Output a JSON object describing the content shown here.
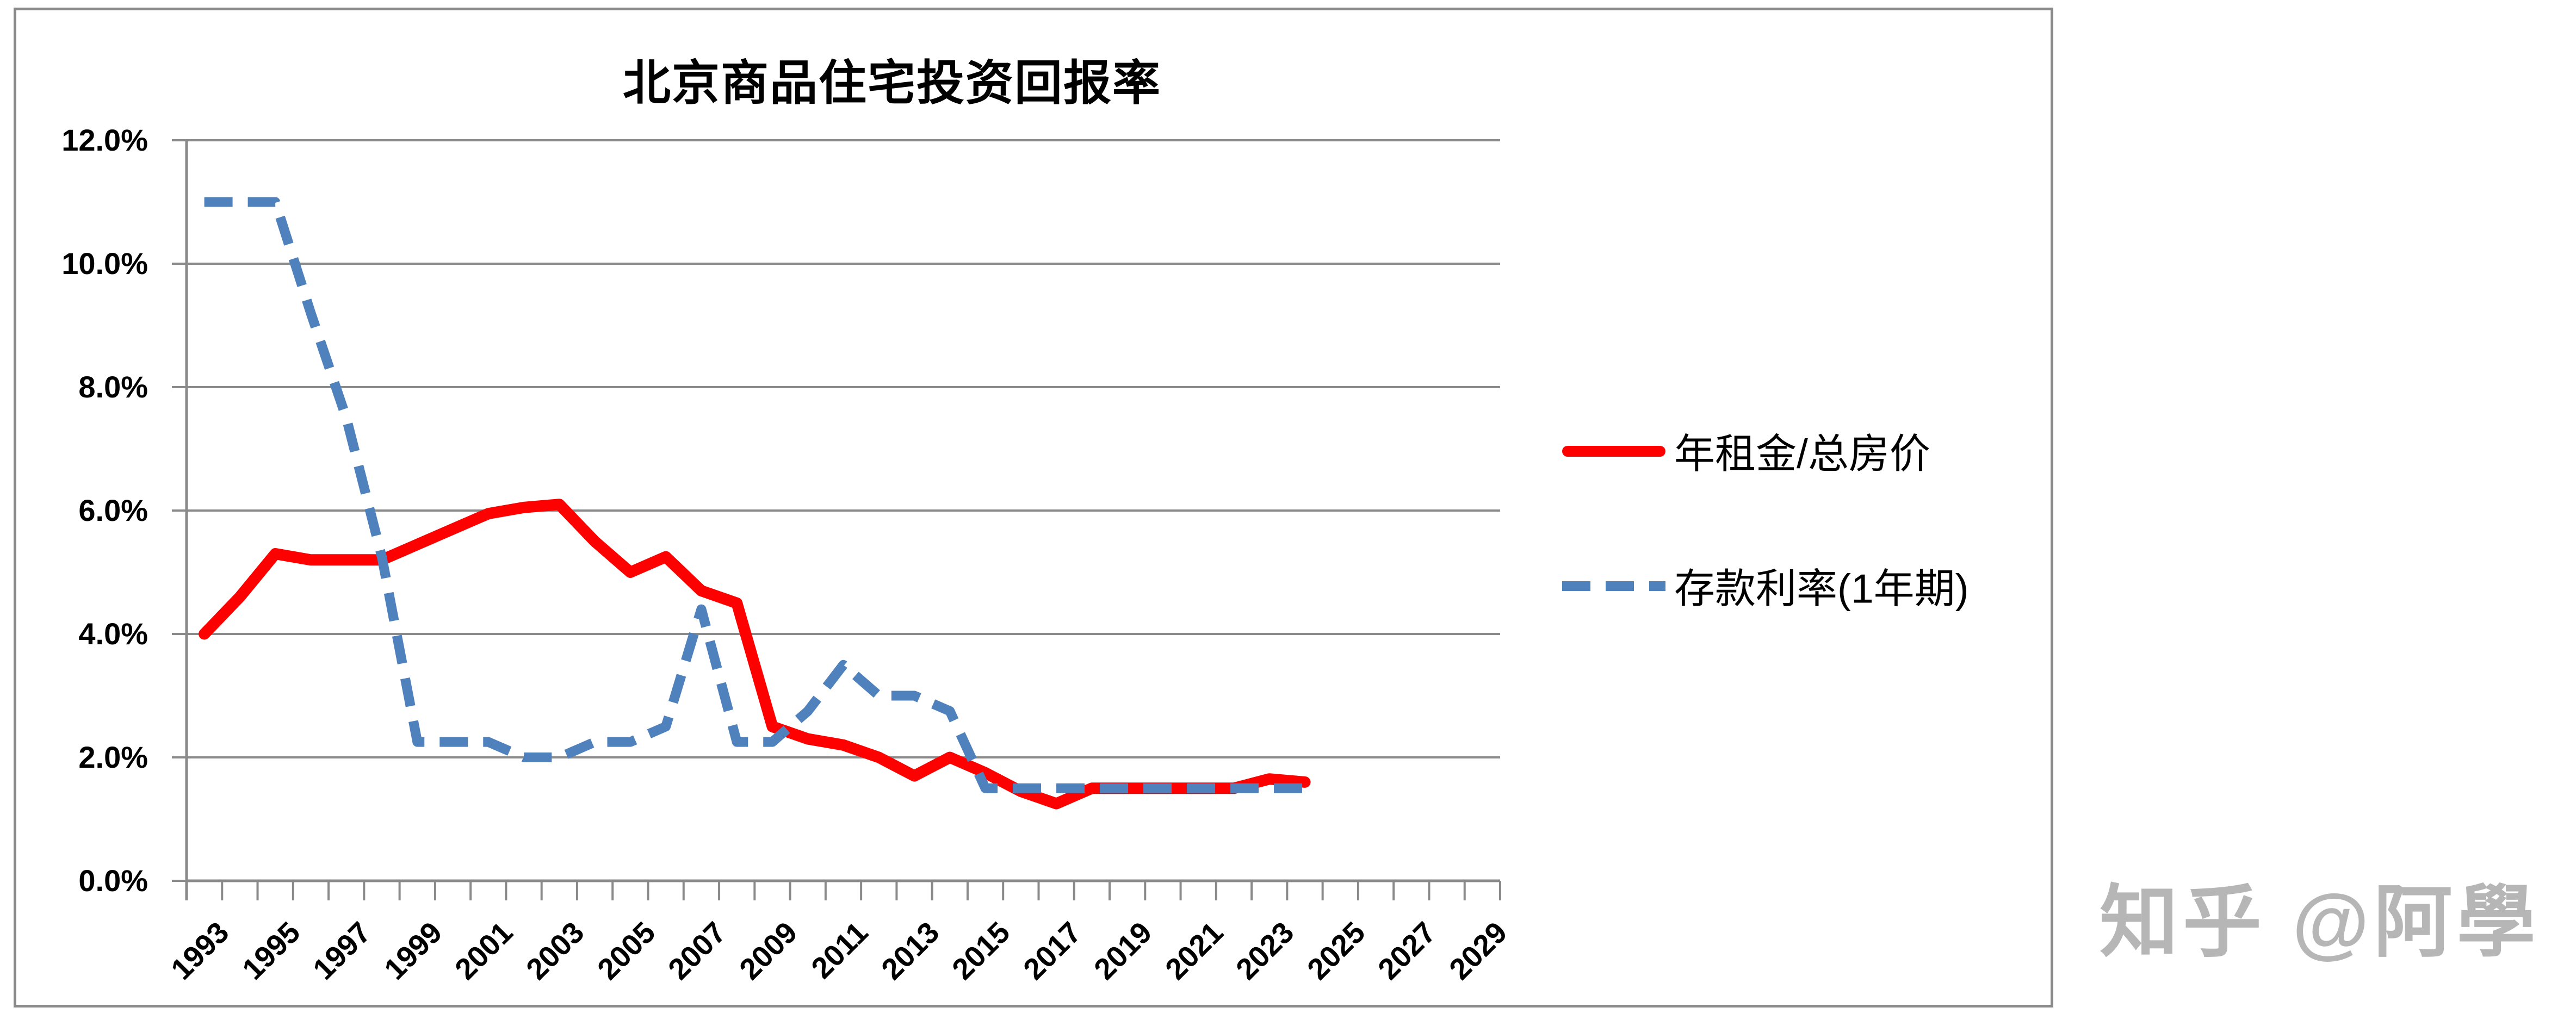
{
  "chart": {
    "title": "北京商品住宅投资回报率"
  },
  "y_axis": {
    "labels": [
      "12.0%",
      "10.0%",
      "8.0%",
      "6.0%",
      "4.0%",
      "2.0%",
      "0.0%"
    ],
    "min": 0,
    "max": 12,
    "step": 2
  },
  "x_axis": {
    "labels": [
      "1993",
      "1995",
      "1997",
      "1999",
      "2001",
      "2003",
      "2005",
      "2007",
      "2009",
      "2011",
      "2013",
      "2015",
      "2017",
      "2019",
      "2021",
      "2023",
      "2025",
      "2027",
      "2029"
    ]
  },
  "legend": {
    "items": [
      {
        "label": "年租金/总房价",
        "color": "#ff0000",
        "style": "solid"
      },
      {
        "label": "存款利率(1年期)",
        "color": "#4f81bd",
        "style": "dashed"
      }
    ]
  },
  "watermark": {
    "text": "知乎 @阿學"
  },
  "colors": {
    "series_red": "#ff0000",
    "series_blue": "#4f81bd",
    "grid": "#8a8a8a",
    "axis": "#8a8a8a",
    "border": "#8a8a8a",
    "text": "#000000",
    "watermark": "#b6b6b6",
    "background": "#ffffff"
  },
  "chart_data": {
    "type": "line",
    "title": "北京商品住宅投资回报率",
    "xlabel": "",
    "ylabel": "",
    "ylim": [
      0,
      12
    ],
    "ytick_step": 2,
    "grid": "horizontal",
    "legend_position": "right",
    "categories": [
      1993,
      1994,
      1995,
      1996,
      1997,
      1998,
      1999,
      2000,
      2001,
      2002,
      2003,
      2004,
      2005,
      2006,
      2007,
      2008,
      2009,
      2010,
      2011,
      2012,
      2013,
      2014,
      2015,
      2016,
      2017,
      2018,
      2019,
      2020,
      2021,
      2022,
      2023,
      2024,
      2025,
      2026,
      2027,
      2028,
      2029
    ],
    "series": [
      {
        "name": "年租金/总房价",
        "color": "#ff0000",
        "style": "solid",
        "values": [
          4.0,
          4.6,
          5.3,
          5.2,
          5.2,
          5.2,
          5.45,
          5.7,
          5.95,
          6.05,
          6.1,
          5.5,
          5.0,
          5.25,
          4.7,
          4.5,
          2.5,
          2.3,
          2.2,
          2.0,
          1.7,
          2.0,
          1.75,
          1.45,
          1.25,
          1.5,
          1.5,
          1.5,
          1.5,
          1.5,
          1.65,
          1.6,
          null,
          null,
          null,
          null,
          null
        ]
      },
      {
        "name": "存款利率(1年期)",
        "color": "#4f81bd",
        "style": "dashed",
        "values": [
          11.0,
          11.0,
          11.0,
          9.2,
          7.5,
          5.25,
          2.25,
          2.25,
          2.25,
          2.0,
          2.0,
          2.25,
          2.25,
          2.5,
          4.4,
          2.25,
          2.25,
          2.75,
          3.5,
          3.0,
          3.0,
          2.75,
          1.5,
          1.5,
          1.5,
          1.5,
          1.5,
          1.5,
          1.5,
          1.5,
          1.5,
          1.5,
          null,
          null,
          null,
          null,
          null
        ]
      }
    ]
  }
}
